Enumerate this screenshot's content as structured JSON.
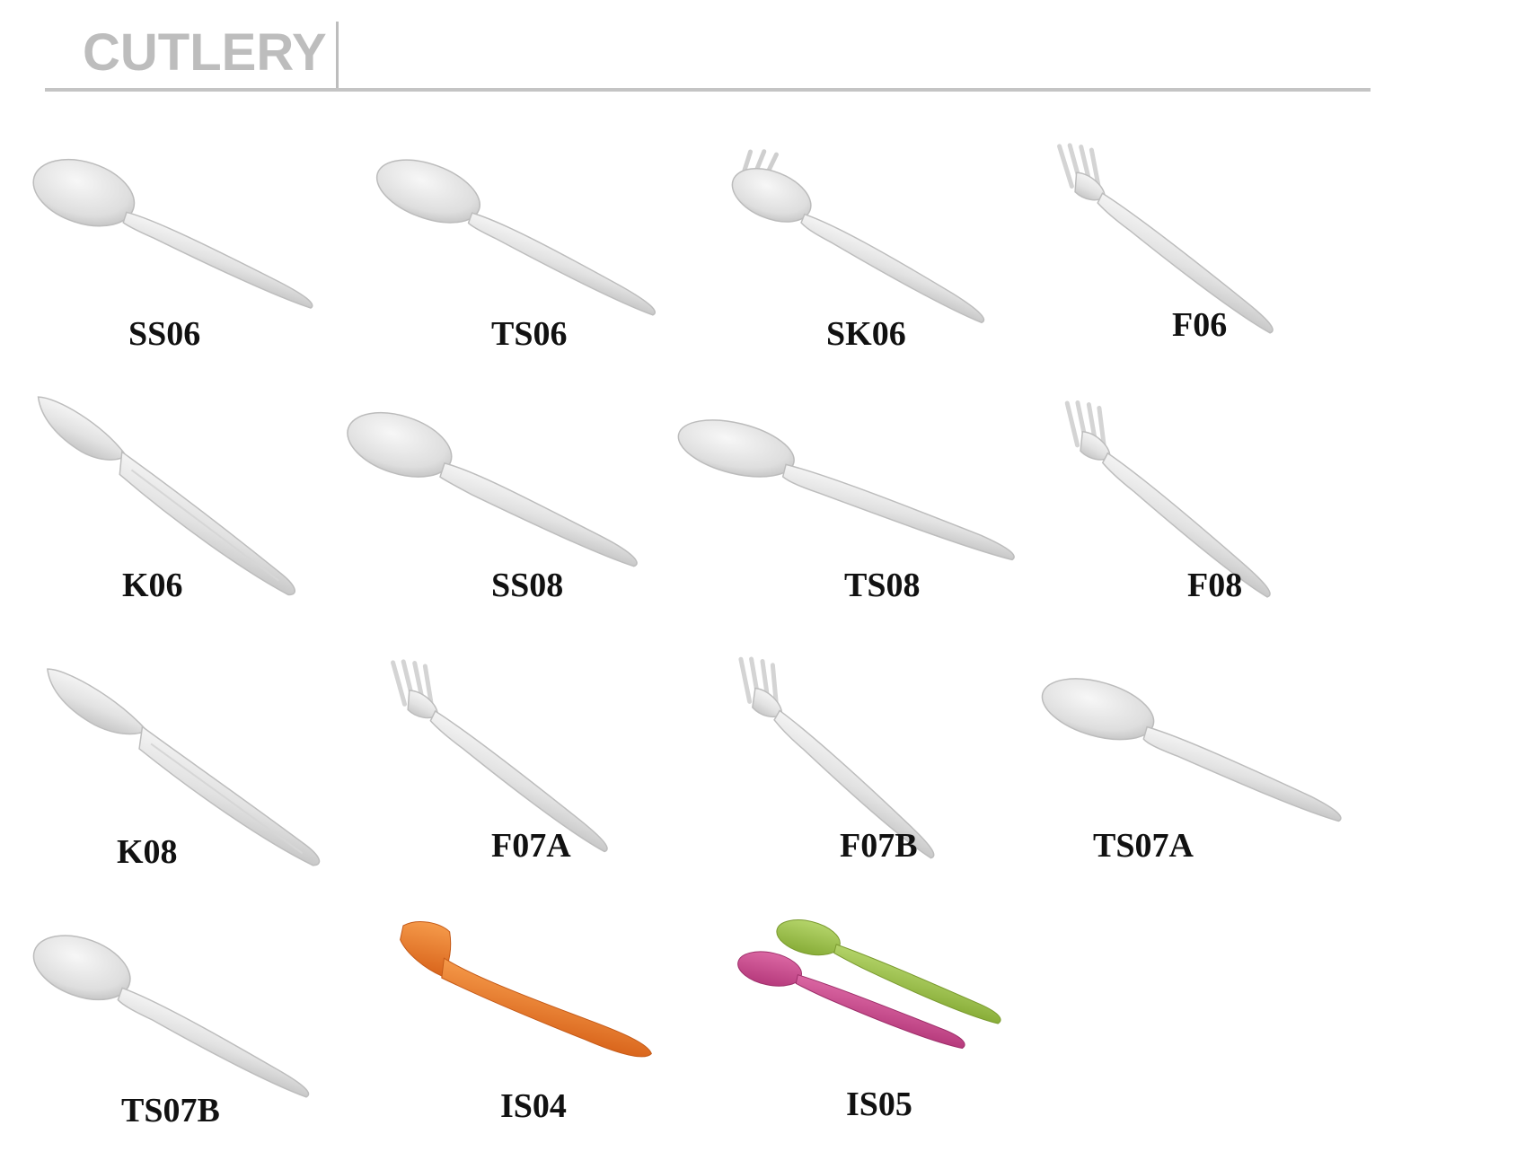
{
  "header": {
    "title": "CUTLERY"
  },
  "colors": {
    "title_gray": "#bdbdbd",
    "rule_gray": "#c4c4c4",
    "utensil_white": "#e9e9e9",
    "utensil_shadow": "#c9c9c9",
    "orange": "#e8792b",
    "green": "#9cc24a",
    "pink": "#c9488e",
    "label_text": "#111111"
  },
  "items": [
    {
      "code": "SS06",
      "icon": "spoon-icon",
      "color": "white"
    },
    {
      "code": "TS06",
      "icon": "spoon-icon",
      "color": "white"
    },
    {
      "code": "SK06",
      "icon": "spork-icon",
      "color": "white"
    },
    {
      "code": "F06",
      "icon": "fork-icon",
      "color": "white"
    },
    {
      "code": "K06",
      "icon": "knife-icon",
      "color": "white"
    },
    {
      "code": "SS08",
      "icon": "spoon-icon",
      "color": "white"
    },
    {
      "code": "TS08",
      "icon": "spoon-icon",
      "color": "white"
    },
    {
      "code": "F08",
      "icon": "fork-icon",
      "color": "white"
    },
    {
      "code": "K08",
      "icon": "knife-icon",
      "color": "white"
    },
    {
      "code": "F07A",
      "icon": "fork-icon",
      "color": "white"
    },
    {
      "code": "F07B",
      "icon": "fork-icon",
      "color": "white"
    },
    {
      "code": "TS07A",
      "icon": "spoon-icon",
      "color": "white"
    },
    {
      "code": "TS07B",
      "icon": "spoon-icon",
      "color": "white"
    },
    {
      "code": "IS04",
      "icon": "ice-cream-spoon-icon",
      "color": "orange"
    },
    {
      "code": "IS05",
      "icon": "ice-cream-spoon-pair-icon",
      "color": "green-pink"
    }
  ]
}
